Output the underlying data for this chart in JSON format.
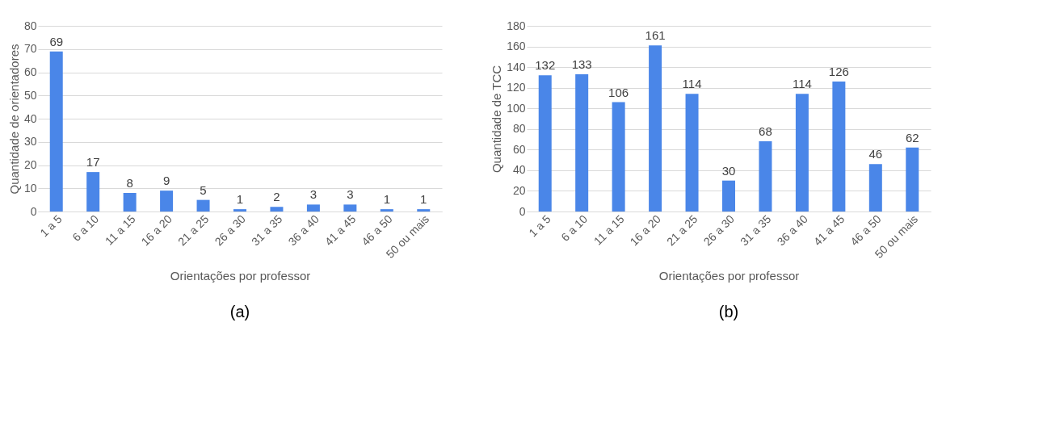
{
  "chart_data": [
    {
      "type": "bar",
      "xlabel": "Orientações por professor",
      "ylabel": "Quantidade de orientadores",
      "categories": [
        "1 a 5",
        "6 a 10",
        "11 a 15",
        "16 a 20",
        "21 a 25",
        "26 a 30",
        "31 a 35",
        "36 a 40",
        "41 a 45",
        "46 a 50",
        "50 ou mais"
      ],
      "values": [
        69,
        17,
        8,
        9,
        5,
        1,
        2,
        3,
        3,
        1,
        1
      ],
      "color": "#4a86e8",
      "ylim": [
        0,
        80
      ],
      "yticks": [
        0,
        10,
        20,
        30,
        40,
        50,
        60,
        70,
        80
      ],
      "grid": "y",
      "data_labels": true,
      "annotations": [
        "(a)"
      ]
    },
    {
      "type": "bar",
      "xlabel": "Orientações por professor",
      "ylabel": "Quantidade de TCC",
      "categories": [
        "1 a 5",
        "6 a 10",
        "11 a 15",
        "16 a 20",
        "21 a 25",
        "26 a 30",
        "31 a 35",
        "36 a 40",
        "41 a 45",
        "46 a 50",
        "50 ou mais"
      ],
      "values": [
        132,
        133,
        106,
        161,
        114,
        30,
        68,
        114,
        126,
        46,
        62
      ],
      "color": "#4a86e8",
      "ylim": [
        0,
        180
      ],
      "yticks": [
        0,
        20,
        40,
        60,
        80,
        100,
        120,
        140,
        160,
        180
      ],
      "grid": "y",
      "data_labels": true,
      "annotations": [
        "(b)"
      ]
    }
  ]
}
